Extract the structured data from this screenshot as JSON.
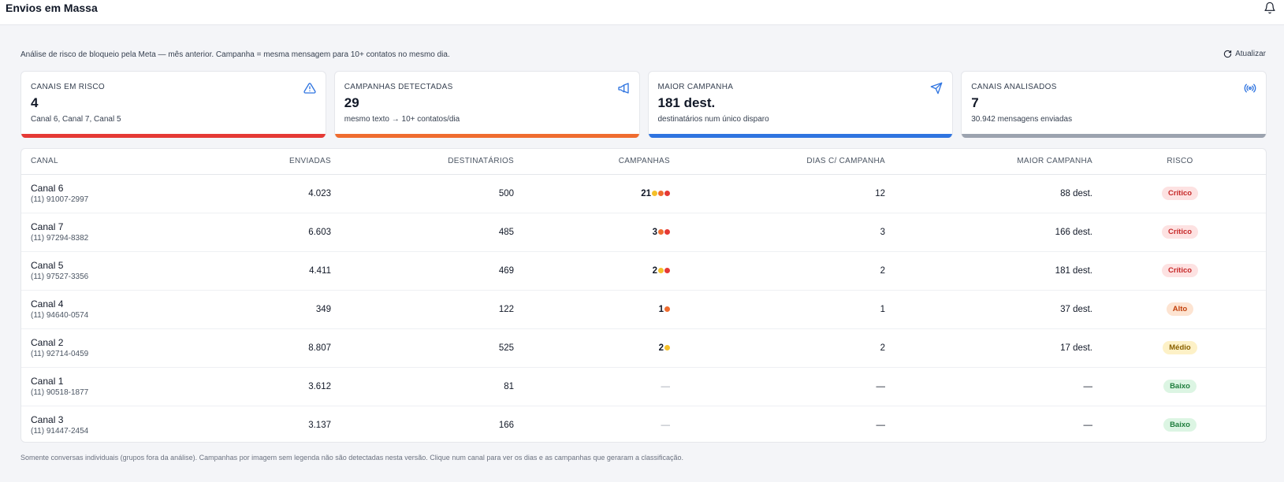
{
  "header": {
    "title": "Envios em Massa",
    "bell_icon": "bell-icon"
  },
  "subtitle": "Análise de risco de bloqueio pela Meta — mês anterior. Campanha = mesma mensagem para 10+ contatos no mesmo dia.",
  "refresh": {
    "label": "Atualizar",
    "icon": "refresh-icon"
  },
  "cards": [
    {
      "label": "CANAIS EM RISCO",
      "value": "4",
      "desc": "Canal 6, Canal 7, Canal 5",
      "icon": "warning-icon",
      "color": "#e53935"
    },
    {
      "label": "CAMPANHAS DETECTADAS",
      "value": "29",
      "desc": "mesmo texto → 10+ contatos/dia",
      "icon": "megaphone-icon",
      "color": "#ef6c2f"
    },
    {
      "label": "MAIOR CAMPANHA",
      "value": "181 dest.",
      "desc": "destinatários num único disparo",
      "icon": "send-icon",
      "color": "#2f74e0"
    },
    {
      "label": "CANAIS ANALISADOS",
      "value": "7",
      "desc": "30.942 mensagens enviadas",
      "icon": "broadcast-icon",
      "color": "#9ca3af"
    }
  ],
  "icon_color": "#2f74e0",
  "table": {
    "headers": [
      "CANAL",
      "ENVIADAS",
      "DESTINATÁRIOS",
      "CAMPANHAS",
      "DIAS C/ CAMPANHA",
      "MAIOR CAMPANHA",
      "RISCO"
    ],
    "rows": [
      {
        "name": "Canal 6",
        "phone": "(11) 91007-2997",
        "sent": "4.023",
        "recipients": "500",
        "campaigns": "21",
        "dots": [
          "yellow",
          "orange",
          "red"
        ],
        "days": "12",
        "largest": "88 dest.",
        "risk": "Crítico",
        "risk_level": "critical"
      },
      {
        "name": "Canal 7",
        "phone": "(11) 97294-8382",
        "sent": "6.603",
        "recipients": "485",
        "campaigns": "3",
        "dots": [
          "orange",
          "red"
        ],
        "days": "3",
        "largest": "166 dest.",
        "risk": "Crítico",
        "risk_level": "critical"
      },
      {
        "name": "Canal 5",
        "phone": "(11) 97527-3356",
        "sent": "4.411",
        "recipients": "469",
        "campaigns": "2",
        "dots": [
          "yellow",
          "red"
        ],
        "days": "2",
        "largest": "181 dest.",
        "risk": "Crítico",
        "risk_level": "critical"
      },
      {
        "name": "Canal 4",
        "phone": "(11) 94640-0574",
        "sent": "349",
        "recipients": "122",
        "campaigns": "1",
        "dots": [
          "orange"
        ],
        "days": "1",
        "largest": "37 dest.",
        "risk": "Alto",
        "risk_level": "high"
      },
      {
        "name": "Canal 2",
        "phone": "(11) 92714-0459",
        "sent": "8.807",
        "recipients": "525",
        "campaigns": "2",
        "dots": [
          "yellow"
        ],
        "days": "2",
        "largest": "17 dest.",
        "risk": "Médio",
        "risk_level": "medium"
      },
      {
        "name": "Canal 1",
        "phone": "(11) 90518-1877",
        "sent": "3.612",
        "recipients": "81",
        "campaigns": "—",
        "dots": [],
        "days": "—",
        "largest": "—",
        "risk": "Baixo",
        "risk_level": "low"
      },
      {
        "name": "Canal 3",
        "phone": "(11) 91447-2454",
        "sent": "3.137",
        "recipients": "166",
        "campaigns": "—",
        "dots": [],
        "days": "—",
        "largest": "—",
        "risk": "Baixo",
        "risk_level": "low"
      }
    ]
  },
  "dot_colors": {
    "yellow": "#f5c02a",
    "orange": "#ef6c2f",
    "red": "#e53935"
  },
  "risk_styles": {
    "critical": {
      "bg": "#fde2e2",
      "fg": "#c62828"
    },
    "high": {
      "bg": "#fde4d2",
      "fg": "#c2410c"
    },
    "medium": {
      "bg": "#fdf1c7",
      "fg": "#8a6100"
    },
    "low": {
      "bg": "#dcf5e3",
      "fg": "#1e7d3c"
    }
  },
  "footnote": "Somente conversas individuais (grupos fora da análise). Campanhas por imagem sem legenda não são detectadas nesta versão. Clique num canal para ver os dias e as campanhas que geraram a classificação."
}
